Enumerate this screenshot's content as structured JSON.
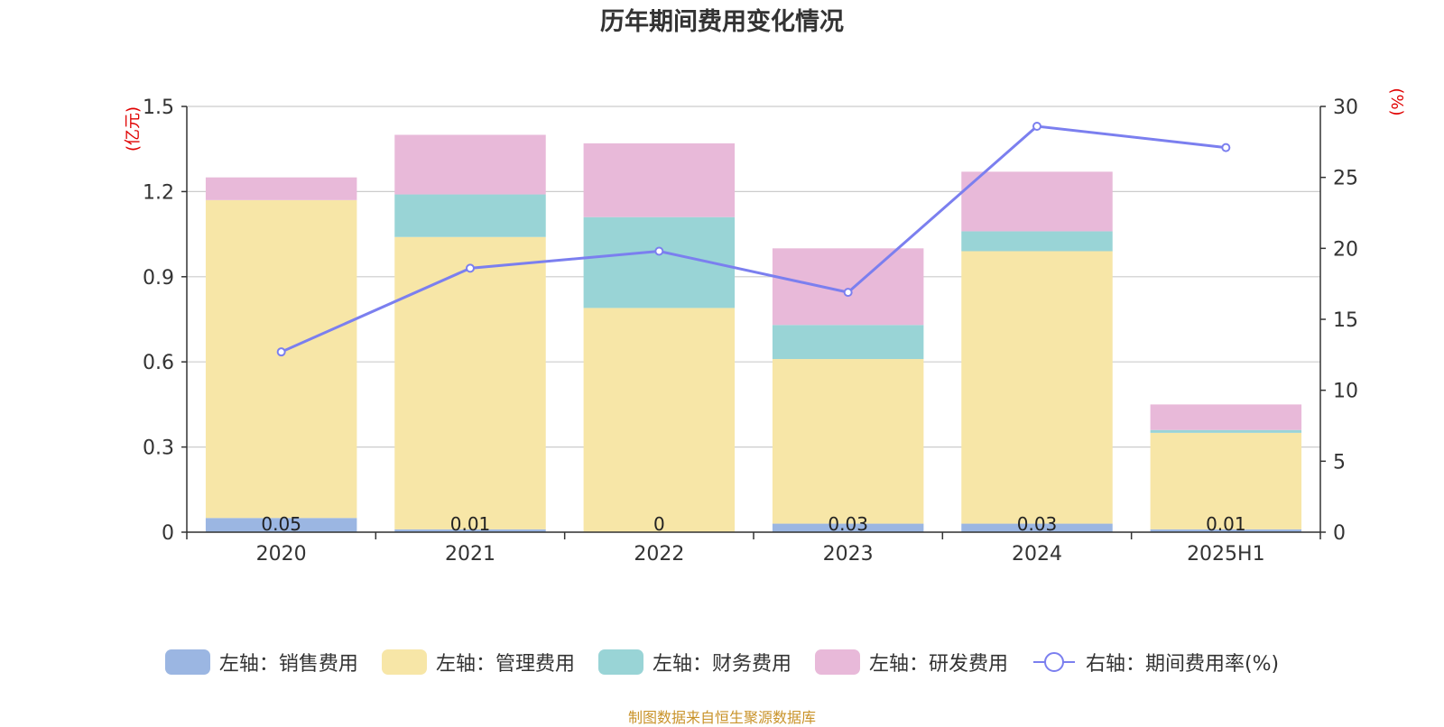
{
  "chart_data": {
    "type": "bar",
    "title": "历年期间费用变化情况",
    "source": "制图数据来自恒生聚源数据库",
    "categories": [
      "2020",
      "2021",
      "2022",
      "2023",
      "2024",
      "2025H1"
    ],
    "left_axis": {
      "unit": "(亿元)",
      "ylim": [
        0,
        1.5
      ],
      "ticks": [
        "0",
        "0.3",
        "0.6",
        "0.9",
        "1.2",
        "1.5"
      ]
    },
    "right_axis": {
      "unit": "(%)",
      "ylim": [
        0,
        30
      ],
      "ticks": [
        "0",
        "5",
        "10",
        "15",
        "20",
        "25",
        "30"
      ]
    },
    "series": [
      {
        "name": "左轴：销售费用",
        "type": "bar",
        "color": "#9bb6e2",
        "values": [
          0.05,
          0.01,
          0,
          0.03,
          0.03,
          0.01
        ],
        "labels": [
          "0.05",
          "0.01",
          "0",
          "0.03",
          "0.03",
          "0.01"
        ]
      },
      {
        "name": "左轴：管理费用",
        "type": "bar",
        "color": "#f7e6a7",
        "values": [
          1.12,
          1.03,
          0.79,
          0.58,
          0.96,
          0.34
        ]
      },
      {
        "name": "左轴：财务费用",
        "type": "bar",
        "color": "#99d4d6",
        "values": [
          0,
          0.15,
          0.32,
          0.12,
          0.07,
          0.01
        ]
      },
      {
        "name": "左轴：研发费用",
        "type": "bar",
        "color": "#e8b9d9",
        "values": [
          0.08,
          0.21,
          0.26,
          0.27,
          0.21,
          0.09
        ]
      },
      {
        "name": "右轴：期间费用率(%)",
        "type": "line",
        "axis": "right",
        "color": "#7b7fef",
        "values": [
          12.7,
          18.6,
          19.8,
          16.9,
          28.6,
          27.1
        ]
      }
    ],
    "grid": true,
    "legend_position": "bottom"
  }
}
